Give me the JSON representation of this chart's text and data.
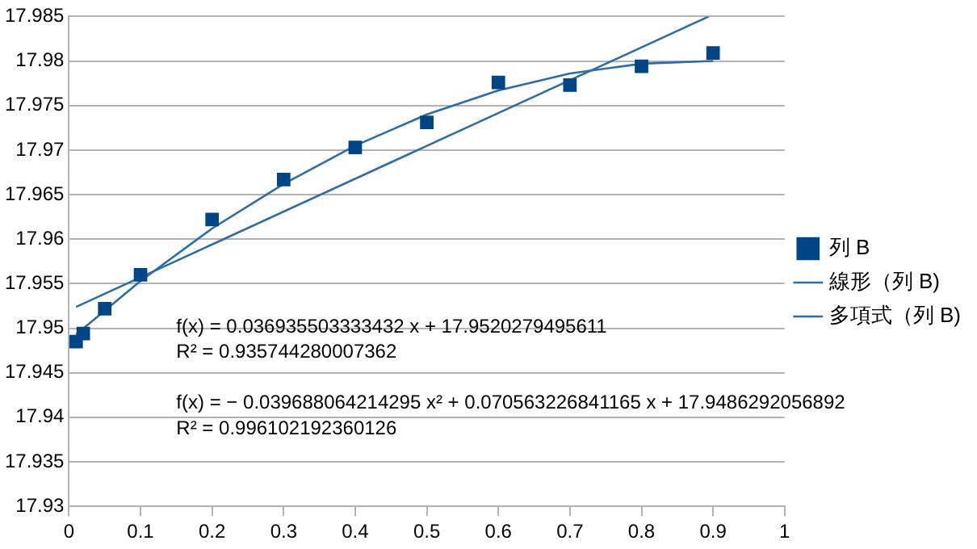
{
  "chart_data": {
    "type": "scatter",
    "xlim": [
      0,
      1
    ],
    "xticks": [
      0,
      0.1,
      0.2,
      0.3,
      0.4,
      0.5,
      0.6,
      0.7,
      0.8,
      0.9,
      1
    ],
    "ylim": [
      17.93,
      17.985
    ],
    "yticks": [
      17.93,
      17.935,
      17.94,
      17.945,
      17.95,
      17.955,
      17.96,
      17.965,
      17.97,
      17.975,
      17.98,
      17.985
    ],
    "grid": "y",
    "legend": "right",
    "marker": "square",
    "series": [
      {
        "name": "列 B",
        "color": "#004586",
        "x": [
          0.01,
          0.02,
          0.05,
          0.1,
          0.2,
          0.3,
          0.4,
          0.5,
          0.6,
          0.7,
          0.8,
          0.9
        ],
        "values": [
          17.9485,
          17.9494,
          17.9522,
          17.956,
          17.9622,
          17.9667,
          17.9703,
          17.9731,
          17.9776,
          17.9773,
          17.9794,
          17.9809
        ]
      },
      {
        "name": "線形（列 B)",
        "type": "line",
        "marker": "none",
        "color": "#2e6ca4",
        "x": [
          0.01,
          0.894
        ],
        "values": [
          17.9524,
          17.985
        ]
      },
      {
        "name": "多項式（列 B)",
        "type": "line",
        "marker": "none",
        "color": "#2e6ca4",
        "x": [
          0.01,
          0.1,
          0.2,
          0.3,
          0.4,
          0.5,
          0.6,
          0.7,
          0.8,
          0.9
        ],
        "values": [
          17.9493,
          17.9553,
          17.9612,
          17.9662,
          17.9705,
          17.974,
          17.9767,
          17.9786,
          17.9797,
          17.98
        ]
      }
    ],
    "annotations": [
      "f(x) = 0.036935503333432 x + 17.9520279495611",
      "R² = 0.935744280007362",
      "f(x) = − 0.039688064214295 x² + 0.070563226841165 x + 17.9486292056892",
      "R² = 0.996102192360126"
    ]
  }
}
